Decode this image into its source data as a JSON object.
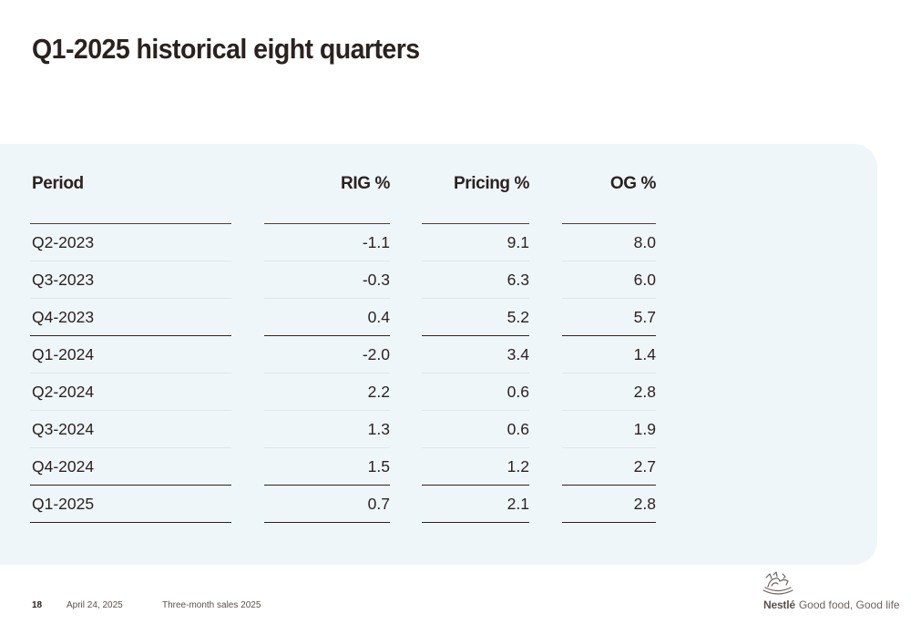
{
  "title": "Q1-2025 historical eight quarters",
  "table": {
    "headers": [
      "Period",
      "RIG %",
      "Pricing %",
      "OG %"
    ],
    "rows": [
      [
        "Q2-2023",
        "-1.1",
        "9.1",
        "8.0"
      ],
      [
        "Q3-2023",
        "-0.3",
        "6.3",
        "6.0"
      ],
      [
        "Q4-2023",
        "0.4",
        "5.2",
        "5.7"
      ],
      [
        "Q1-2024",
        "-2.0",
        "3.4",
        "1.4"
      ],
      [
        "Q2-2024",
        "2.2",
        "0.6",
        "2.8"
      ],
      [
        "Q3-2024",
        "1.3",
        "0.6",
        "1.9"
      ],
      [
        "Q4-2024",
        "1.5",
        "1.2",
        "2.7"
      ],
      [
        "Q1-2025",
        "0.7",
        "2.1",
        "2.8"
      ]
    ]
  },
  "footer": {
    "page": "18",
    "date": "April 24, 2025",
    "subtitle": "Three-month sales 2025"
  },
  "brand": {
    "name": "Nestlé",
    "tagline": "Good food, Good life",
    "logo_icon": "nest-birds-icon"
  },
  "colors": {
    "text": "#2b2220",
    "panel": "#eff6fa"
  }
}
